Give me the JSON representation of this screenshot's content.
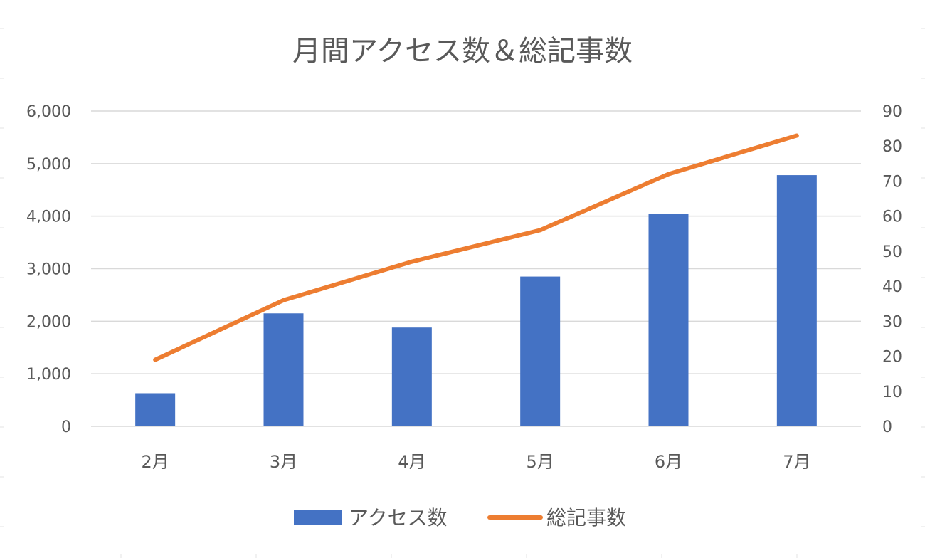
{
  "chart_data": {
    "type": "bar",
    "title": "月間アクセス数＆総記事数",
    "categories": [
      "2月",
      "3月",
      "4月",
      "5月",
      "6月",
      "7月"
    ],
    "series": [
      {
        "name": "アクセス数",
        "type": "bar",
        "axis": "left",
        "color": "#4472c4",
        "values": [
          630,
          2150,
          1880,
          2850,
          4040,
          4780
        ]
      },
      {
        "name": "総記事数",
        "type": "line",
        "axis": "right",
        "color": "#ed7d31",
        "values": [
          19,
          36,
          47,
          56,
          72,
          83
        ]
      }
    ],
    "ylim": [
      0,
      6000
    ],
    "y2lim": [
      0,
      90
    ],
    "y_ticks": [
      "0",
      "1,000",
      "2,000",
      "3,000",
      "4,000",
      "5,000",
      "6,000"
    ],
    "y2_ticks": [
      "0",
      "10",
      "20",
      "30",
      "40",
      "50",
      "60",
      "70",
      "80",
      "90"
    ],
    "grid": true,
    "legend": "bottom"
  }
}
